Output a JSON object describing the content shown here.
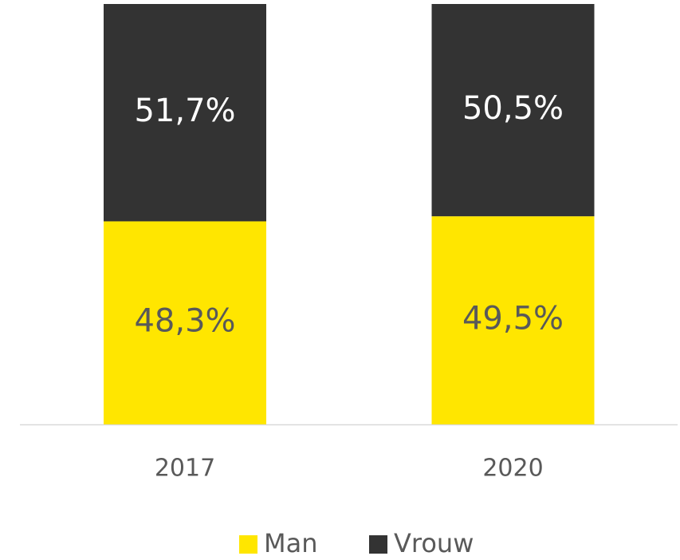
{
  "chart_data": {
    "type": "stacked_bar",
    "categories": [
      "2017",
      "2020"
    ],
    "series": [
      {
        "name": "Man",
        "color": "#FFE600",
        "label_color": "#595959",
        "values": [
          48.3,
          49.5
        ],
        "value_labels": [
          "48,3%",
          "49,5%"
        ]
      },
      {
        "name": "Vrouw",
        "color": "#333333",
        "label_color": "#FFFFFF",
        "values": [
          51.7,
          50.5
        ],
        "value_labels": [
          "51,7%",
          "50,5%"
        ]
      }
    ],
    "ylim": [
      0,
      100
    ],
    "legend": "bottom"
  }
}
